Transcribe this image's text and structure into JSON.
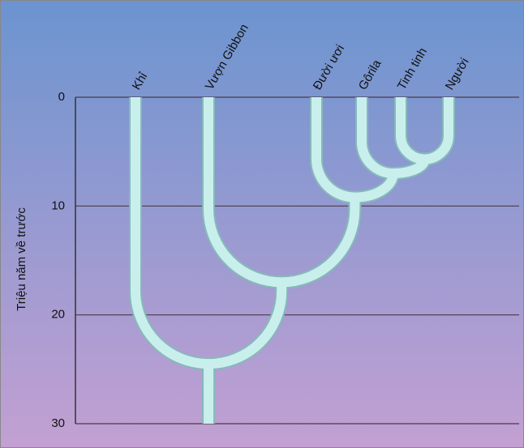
{
  "chart_data": {
    "type": "dendrogram",
    "ylabel": "Triệu năm về trước",
    "ylim": [
      0,
      30
    ],
    "yticks": [
      0,
      10,
      20,
      30
    ],
    "grid": true,
    "categories": [
      "Khỉ",
      "Vượn Gibbon",
      "Đười ươi",
      "Gôrila",
      "Tinh tinh",
      "Người"
    ],
    "nodes": [
      {
        "children": [
          4,
          5
        ],
        "height": 5.7
      },
      {
        "children": [
          3,
          6
        ],
        "height": 7
      },
      {
        "children": [
          2,
          7
        ],
        "height": 9.2
      },
      {
        "children": [
          1,
          8
        ],
        "height": 17
      },
      {
        "children": [
          0,
          9
        ],
        "height": 24.5
      }
    ],
    "color": "#c9efec"
  }
}
